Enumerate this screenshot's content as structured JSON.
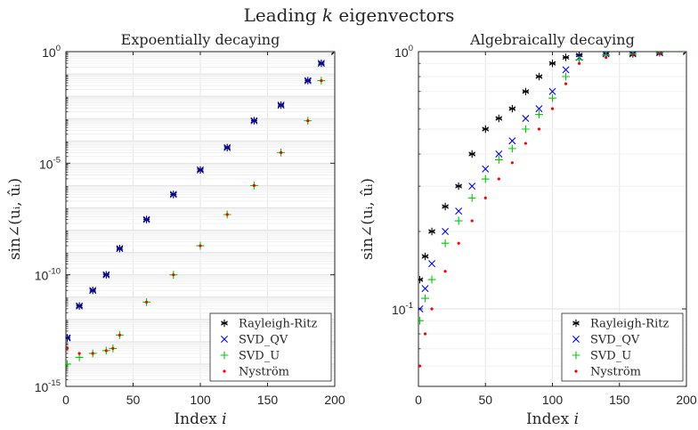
{
  "figure": {
    "title": "Leading k eigenvectors"
  },
  "chart_data": [
    {
      "type": "scatter",
      "title": "Expoentially decaying",
      "xlabel": "Index i",
      "ylabel": "sin∠(uᵢ, ûᵢ)",
      "xlim": [
        0,
        200
      ],
      "ylim": [
        1e-15,
        1
      ],
      "yscale": "log",
      "grid": true,
      "xticks": [
        "0",
        "50",
        "100",
        "150",
        "200"
      ],
      "yticks": [
        {
          "value": 1,
          "base": "10",
          "exp": "0"
        },
        {
          "value": 1e-05,
          "base": "10",
          "exp": "-5"
        },
        {
          "value": 1e-10,
          "base": "10",
          "exp": "-10"
        },
        {
          "value": 1e-15,
          "base": "10",
          "exp": "-15"
        }
      ],
      "legend_position": "bottom-right",
      "series": [
        {
          "name": "Rayleigh-Ritz",
          "marker": "asterisk",
          "color": "#000000",
          "x": [
            1,
            10,
            20,
            30,
            40,
            60,
            80,
            100,
            120,
            140,
            160,
            180,
            190,
            200
          ],
          "y": [
            1.5e-13,
            4e-12,
            2e-11,
            1e-10,
            1.5e-09,
            3e-08,
            4e-07,
            5e-06,
            5e-05,
            0.0008,
            0.004,
            0.05,
            0.3,
            1
          ]
        },
        {
          "name": "SVD_QV",
          "marker": "x",
          "color": "#0000ff",
          "x": [
            1,
            10,
            20,
            30,
            40,
            60,
            80,
            100,
            120,
            140,
            160,
            180,
            190,
            200
          ],
          "y": [
            1.5e-13,
            4e-12,
            2e-11,
            1e-10,
            1.5e-09,
            3e-08,
            4e-07,
            5e-06,
            5e-05,
            0.0008,
            0.004,
            0.05,
            0.3,
            1
          ]
        },
        {
          "name": "SVD_U",
          "marker": "plus",
          "color": "#00cc00",
          "x": [
            1,
            10,
            20,
            30,
            35,
            40,
            60,
            80,
            100,
            120,
            140,
            160,
            180,
            190,
            200
          ],
          "y": [
            1e-14,
            2e-14,
            3e-14,
            4e-14,
            5e-14,
            2e-13,
            6e-12,
            1e-10,
            2e-09,
            5e-08,
            1e-06,
            3e-05,
            0.0008,
            0.05,
            1
          ]
        },
        {
          "name": "Nyström",
          "marker": "dot",
          "color": "#ff0000",
          "x": [
            1,
            10,
            20,
            30,
            35,
            40,
            60,
            80,
            100,
            120,
            140,
            160,
            180,
            190,
            200
          ],
          "y": [
            5e-14,
            3e-14,
            3e-14,
            4e-14,
            5e-14,
            2e-13,
            6e-12,
            1e-10,
            2e-09,
            5e-08,
            1e-06,
            3e-05,
            0.0008,
            0.05,
            1
          ]
        }
      ]
    },
    {
      "type": "scatter",
      "title": "Algebraically decaying",
      "xlabel": "Index i",
      "ylabel": "sin∠(uᵢ, ûᵢ)",
      "xlim": [
        0,
        200
      ],
      "ylim": [
        0.05,
        1
      ],
      "yscale": "log",
      "grid": true,
      "xticks": [
        "0",
        "50",
        "100",
        "150",
        "200"
      ],
      "yticks": [
        {
          "value": 1,
          "base": "10",
          "exp": "0"
        },
        {
          "value": 0.1,
          "base": "10",
          "exp": "-1"
        }
      ],
      "legend_position": "bottom-right",
      "series": [
        {
          "name": "Rayleigh-Ritz",
          "marker": "asterisk",
          "color": "#000000",
          "x": [
            1,
            5,
            10,
            20,
            30,
            40,
            50,
            60,
            70,
            80,
            90,
            100,
            110,
            120,
            140,
            160,
            180,
            200
          ],
          "y": [
            0.13,
            0.16,
            0.2,
            0.25,
            0.3,
            0.4,
            0.5,
            0.55,
            0.6,
            0.7,
            0.8,
            0.9,
            0.95,
            0.97,
            0.98,
            0.98,
            0.99,
            1
          ]
        },
        {
          "name": "SVD_QV",
          "marker": "x",
          "color": "#0000ff",
          "x": [
            1,
            5,
            10,
            20,
            30,
            40,
            50,
            60,
            70,
            80,
            90,
            100,
            110,
            120,
            140,
            160,
            180,
            200
          ],
          "y": [
            0.1,
            0.12,
            0.15,
            0.2,
            0.24,
            0.3,
            0.35,
            0.4,
            0.45,
            0.55,
            0.6,
            0.7,
            0.85,
            0.95,
            0.98,
            0.98,
            0.99,
            1
          ]
        },
        {
          "name": "SVD_U",
          "marker": "plus",
          "color": "#00cc00",
          "x": [
            1,
            5,
            10,
            20,
            30,
            40,
            50,
            60,
            70,
            80,
            90,
            100,
            110,
            120,
            140,
            160,
            180,
            200
          ],
          "y": [
            0.09,
            0.11,
            0.13,
            0.18,
            0.22,
            0.27,
            0.32,
            0.38,
            0.42,
            0.5,
            0.57,
            0.66,
            0.8,
            0.93,
            0.97,
            0.98,
            0.99,
            1
          ]
        },
        {
          "name": "Nyström",
          "marker": "dot",
          "color": "#ff0000",
          "x": [
            1,
            5,
            10,
            20,
            30,
            40,
            50,
            60,
            70,
            80,
            90,
            100,
            110,
            120,
            140,
            160,
            180,
            200
          ],
          "y": [
            0.06,
            0.08,
            0.1,
            0.14,
            0.18,
            0.22,
            0.27,
            0.32,
            0.37,
            0.44,
            0.5,
            0.6,
            0.75,
            0.9,
            0.95,
            0.97,
            0.98,
            1
          ]
        }
      ]
    }
  ]
}
